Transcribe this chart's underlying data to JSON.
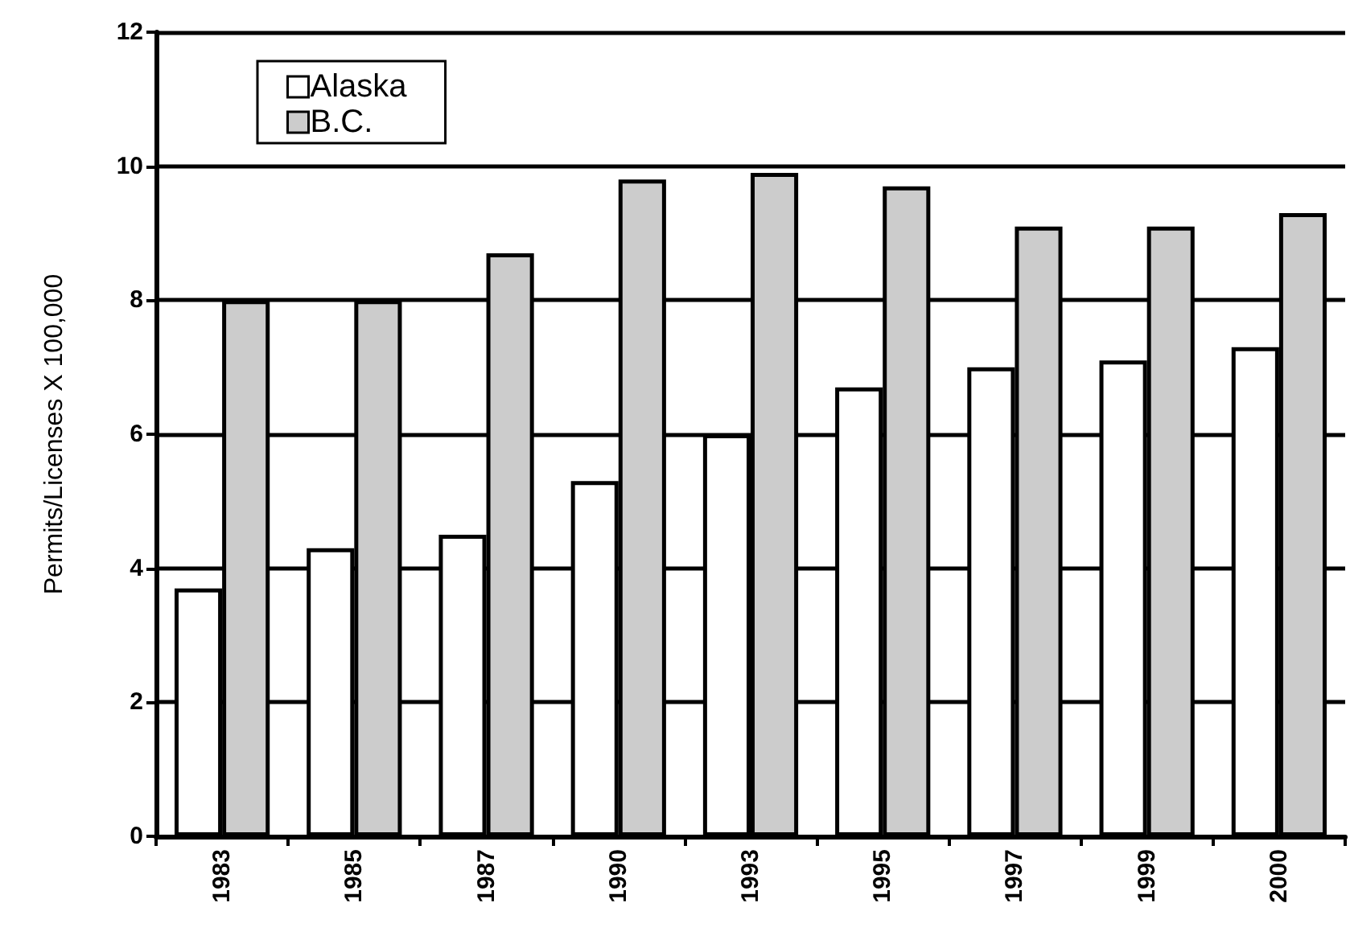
{
  "chart_data": {
    "type": "bar",
    "ylabel": "Permits/Licenses X 100,000",
    "categories": [
      "1983",
      "1985",
      "1987",
      "1990",
      "1993",
      "1995",
      "1997",
      "1999",
      "2000"
    ],
    "series": [
      {
        "name": "Alaska",
        "color": "#ffffff",
        "values": [
          3.7,
          4.3,
          4.5,
          5.3,
          6.0,
          6.7,
          7.0,
          7.1,
          7.3
        ]
      },
      {
        "name": "B.C.",
        "color": "#cccccc",
        "values": [
          8.0,
          8.0,
          8.7,
          9.8,
          9.9,
          9.7,
          9.1,
          9.1,
          9.3
        ]
      }
    ],
    "ylim": [
      0,
      12
    ],
    "yticks": [
      0,
      2,
      4,
      6,
      8,
      10,
      12
    ],
    "grid": "y",
    "legend": "top left"
  }
}
